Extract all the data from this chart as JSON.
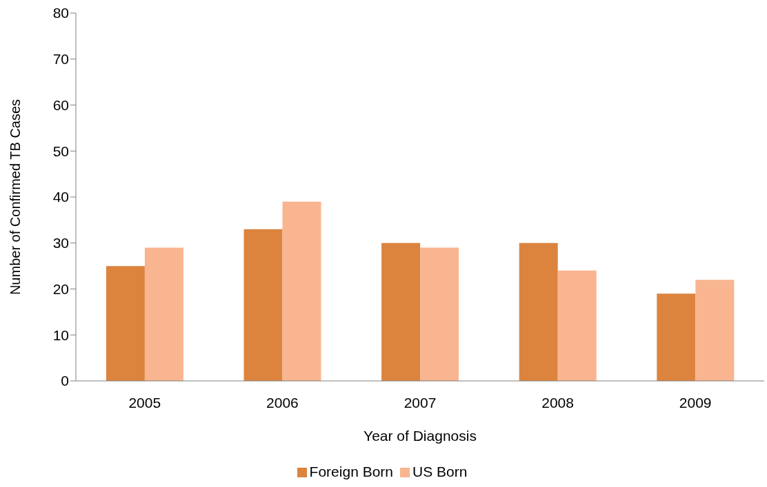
{
  "chart_data": {
    "type": "bar",
    "xlabel": "Year of Diagnosis",
    "ylabel": "Number of Confirmed TB Cases",
    "categories": [
      "2005",
      "2006",
      "2007",
      "2008",
      "2009"
    ],
    "series": [
      {
        "name": "Foreign Born",
        "color": "#dc843e",
        "values": [
          25,
          33,
          30,
          30,
          19
        ]
      },
      {
        "name": "US Born",
        "color": "#f8b590",
        "values": [
          29,
          39,
          29,
          24,
          22
        ]
      }
    ],
    "ylim": [
      0,
      80
    ],
    "yticks": [
      0,
      10,
      20,
      30,
      40,
      50,
      60,
      70,
      80
    ],
    "grid": false,
    "legend": "bottom"
  }
}
